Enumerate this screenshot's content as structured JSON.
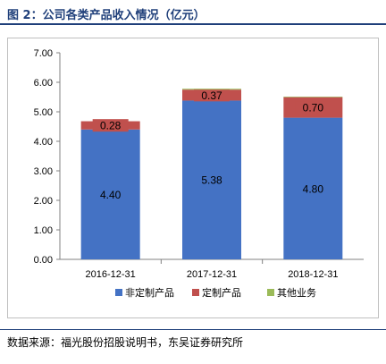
{
  "figure_title": "图 2：公司各类产品收入情况（亿元）",
  "source_note": "数据来源：福光股份招股说明书，东吴证券研究所",
  "chart_data": {
    "type": "bar",
    "stacked": true,
    "categories": [
      "2016-12-31",
      "2017-12-31",
      "2018-12-31"
    ],
    "series": [
      {
        "name": "非定制产品",
        "values": [
          4.4,
          5.38,
          4.8
        ],
        "color": "#4472c4",
        "labels": [
          "4.40",
          "5.38",
          "4.80"
        ]
      },
      {
        "name": "定制产品",
        "values": [
          0.28,
          0.37,
          0.7
        ],
        "color": "#c0504d",
        "labels": [
          "0.28",
          "0.37",
          "0.70"
        ]
      },
      {
        "name": "其他业务",
        "values": [
          0.0,
          0.03,
          0.01
        ],
        "color": "#9bbb59"
      }
    ],
    "yticks": [
      "0.00",
      "1.00",
      "2.00",
      "3.00",
      "4.00",
      "5.00",
      "6.00",
      "7.00"
    ],
    "ylim": [
      0,
      7
    ],
    "grid": false,
    "legend": "bottom"
  }
}
